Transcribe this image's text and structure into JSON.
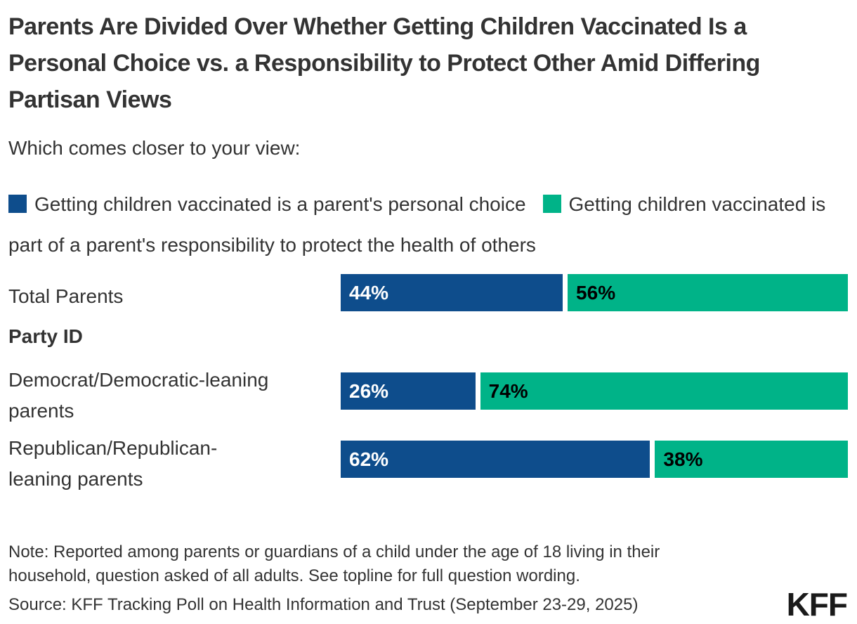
{
  "title": "Parents Are Divided Over Whether Getting Children Vaccinated Is a Personal Choice vs. a Responsibility to Protect Other Amid Differing Partisan Views",
  "subtitle": "Which comes closer to your view:",
  "legend": [
    {
      "label": "Getting children vaccinated is a parent's personal choice"
    },
    {
      "label": "Getting children vaccinated is part of a parent's responsibility to protect the health of others"
    }
  ],
  "section_header": "Party ID",
  "colors": {
    "blue": "#0E4D8C",
    "green": "#00B388",
    "text": "#333333",
    "bar_label_on_blue": "#FFFFFF",
    "bar_label_on_green": "#000000"
  },
  "chart_data": {
    "type": "bar",
    "orientation": "horizontal",
    "stacked": true,
    "title": "Parents Are Divided Over Whether Getting Children Vaccinated Is a Personal Choice vs. a Responsibility to Protect Other Amid Differing Partisan Views",
    "question": "Which comes closer to your view:",
    "categories": [
      "Total Parents",
      "Democrat/Democratic-leaning parents",
      "Republican/Republican-leaning parents"
    ],
    "group_header": {
      "label": "Party ID",
      "after_category_index": 0
    },
    "series": [
      {
        "name": "Getting children vaccinated is a parent's personal choice",
        "color": "#0E4D8C",
        "values": [
          44,
          26,
          62
        ]
      },
      {
        "name": "Getting children vaccinated is part of a parent's responsibility to protect the health of others",
        "color": "#00B388",
        "values": [
          56,
          74,
          38
        ]
      }
    ],
    "value_suffix": "%",
    "xlim": [
      0,
      100
    ],
    "data_labels": "inside-start",
    "legend_position": "top"
  },
  "note": "Note: Reported among parents or guardians of a child under the age of 18 living in their household, question asked of all adults. See topline for full question wording.",
  "source": "Source: KFF Tracking Poll on Health Information and Trust (September 23-29, 2025)",
  "logo_text": "KFF"
}
